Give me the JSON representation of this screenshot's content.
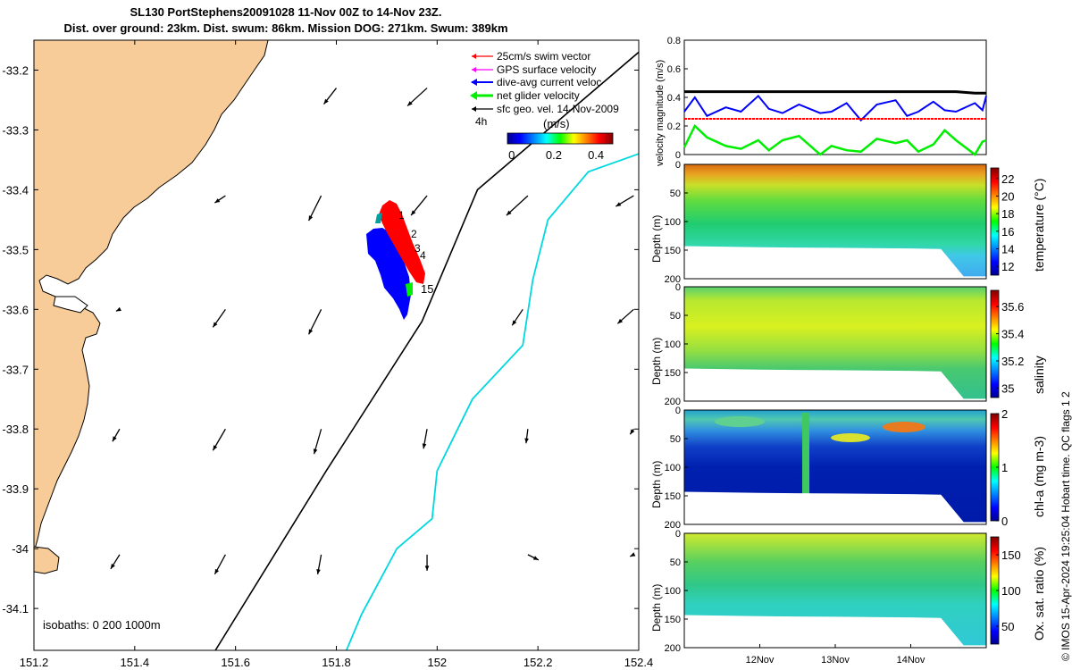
{
  "title": {
    "line1": "SL130 PortStephens20091028 11-Nov 00Z to 14-Nov 23Z.",
    "line2": "Dist. over ground: 23km. Dist. swum: 86km. Mission DOG: 271km. Swum: 389km"
  },
  "credit": "© IMOS 15-Apr-2024 19:25:04 Hobart time. QC flags 1  2",
  "colors": {
    "land": "#f8cc98",
    "glider_track": "#ff0000",
    "dive_avg": "#0000ff",
    "net_glider": "#00ee00",
    "isobath": "#00d8e0",
    "geo_vector": "#000000"
  },
  "chart_data": [
    {
      "type": "map",
      "name": "glider track map",
      "x_ticks": [
        151.2,
        151.4,
        151.6,
        151.8,
        152,
        152.2,
        152.4
      ],
      "x_tick_labels": [
        "151.2",
        "151.4",
        "151.6",
        "151.8",
        "152",
        "152.2",
        "152.4"
      ],
      "y_ticks": [
        -33.2,
        -33.3,
        -33.4,
        -33.5,
        -33.6,
        -33.7,
        -33.8,
        -33.9,
        -34,
        -34.1
      ],
      "y_tick_labels": [
        "-33.2",
        "-33.3",
        "-33.4",
        "-33.5",
        "-33.6",
        "-33.7",
        "-33.8",
        "-33.9",
        "-34",
        "-34.1"
      ],
      "xlim": [
        151.2,
        152.4
      ],
      "ylim": [
        -34.17,
        -33.15
      ],
      "legend": [
        {
          "label": "25cm/s swim vector",
          "color": "#ff0000"
        },
        {
          "label": "GPS surface velocity",
          "color": "#ff00ff"
        },
        {
          "label": "dive-avg current veloc",
          "color": "#0000ff"
        },
        {
          "label": "net glider velocity",
          "color": "#00ee00"
        },
        {
          "label": "sfc geo. vel. 14-Nov-2009",
          "color": "#000000"
        }
      ],
      "legend_extra": "4h",
      "colorbar": {
        "unit": "(m/s)",
        "ticks": [
          0,
          0.2,
          0.4
        ],
        "tick_labels": [
          "0",
          "0.2",
          "0.4"
        ],
        "range": [
          -0.02,
          0.48
        ]
      },
      "track_labels": [
        "1",
        "2",
        "3",
        "4",
        "15"
      ],
      "isobath_label": "isobaths: 0   200  1000m",
      "isobath_1000m": [
        [
          152.4,
          -33.34
        ],
        [
          152.3,
          -33.37
        ],
        [
          152.22,
          -33.45
        ],
        [
          152.19,
          -33.55
        ],
        [
          152.17,
          -33.66
        ],
        [
          152.07,
          -33.75
        ],
        [
          152.0,
          -33.87
        ],
        [
          151.99,
          -33.95
        ],
        [
          151.92,
          -34.0
        ],
        [
          151.85,
          -34.11
        ],
        [
          151.82,
          -34.17
        ]
      ],
      "glider_transect": [
        [
          152.4,
          -33.17
        ],
        [
          152.08,
          -33.4
        ],
        [
          151.97,
          -33.62
        ],
        [
          151.78,
          -33.87
        ],
        [
          151.56,
          -34.17
        ]
      ],
      "geo_vectors": [
        {
          "x": 151.8,
          "y": -33.23,
          "u": -0.35,
          "v": -0.45
        },
        {
          "x": 151.98,
          "y": -33.23,
          "u": -0.55,
          "v": -0.5
        },
        {
          "x": 151.58,
          "y": -33.41,
          "u": -0.3,
          "v": -0.2
        },
        {
          "x": 151.77,
          "y": -33.41,
          "u": -0.35,
          "v": -0.7
        },
        {
          "x": 151.98,
          "y": -33.41,
          "u": -0.45,
          "v": -0.55
        },
        {
          "x": 152.18,
          "y": -33.41,
          "u": -0.6,
          "v": -0.55
        },
        {
          "x": 152.39,
          "y": -33.41,
          "u": -0.5,
          "v": -0.3
        },
        {
          "x": 151.37,
          "y": -33.6,
          "u": -0.1,
          "v": -0.05
        },
        {
          "x": 151.58,
          "y": -33.6,
          "u": -0.35,
          "v": -0.5
        },
        {
          "x": 151.77,
          "y": -33.6,
          "u": -0.35,
          "v": -0.7
        },
        {
          "x": 152.17,
          "y": -33.6,
          "u": -0.3,
          "v": -0.45
        },
        {
          "x": 152.39,
          "y": -33.6,
          "u": -0.45,
          "v": -0.4
        },
        {
          "x": 151.37,
          "y": -33.8,
          "u": -0.2,
          "v": -0.35
        },
        {
          "x": 151.58,
          "y": -33.8,
          "u": -0.35,
          "v": -0.6
        },
        {
          "x": 151.77,
          "y": -33.8,
          "u": -0.2,
          "v": -0.7
        },
        {
          "x": 151.98,
          "y": -33.8,
          "u": -0.1,
          "v": -0.55
        },
        {
          "x": 152.18,
          "y": -33.8,
          "u": -0.05,
          "v": -0.4
        },
        {
          "x": 152.39,
          "y": -33.8,
          "u": -0.1,
          "v": -0.15
        },
        {
          "x": 151.37,
          "y": -34.01,
          "u": -0.25,
          "v": -0.4
        },
        {
          "x": 151.58,
          "y": -34.01,
          "u": -0.3,
          "v": -0.55
        },
        {
          "x": 151.77,
          "y": -34.01,
          "u": -0.1,
          "v": -0.55
        },
        {
          "x": 151.98,
          "y": -34.01,
          "u": 0.0,
          "v": -0.45
        },
        {
          "x": 152.18,
          "y": -34.01,
          "u": 0.3,
          "v": -0.15
        },
        {
          "x": 152.39,
          "y": -34.01,
          "u": -0.1,
          "v": -0.05
        }
      ]
    },
    {
      "type": "line",
      "name": "velocity magnitude",
      "ylabel": "velocity magnitude (m/s)",
      "ylim": [
        0,
        0.8
      ],
      "y_ticks": [
        0,
        0.2,
        0.4,
        0.6,
        0.8
      ],
      "y_tick_labels": [
        "0",
        "0.2",
        "0.4",
        "0.6",
        "0.8"
      ],
      "xlim": [
        0,
        4
      ],
      "x": [
        0,
        0.14,
        0.3,
        0.55,
        0.75,
        0.98,
        1.12,
        1.3,
        1.52,
        1.8,
        1.95,
        2.15,
        2.34,
        2.55,
        2.8,
        2.95,
        3.1,
        3.3,
        3.45,
        3.6,
        3.85,
        3.95,
        4
      ],
      "series": [
        {
          "color": "#000000",
          "values": [
            0.44,
            0.44,
            0.44,
            0.44,
            0.44,
            0.44,
            0.44,
            0.44,
            0.44,
            0.44,
            0.44,
            0.44,
            0.44,
            0.44,
            0.44,
            0.44,
            0.44,
            0.44,
            0.44,
            0.44,
            0.43,
            0.43,
            0.43
          ]
        },
        {
          "color": "#0000ff",
          "values": [
            0.3,
            0.4,
            0.27,
            0.33,
            0.3,
            0.41,
            0.32,
            0.29,
            0.35,
            0.29,
            0.3,
            0.36,
            0.24,
            0.35,
            0.38,
            0.27,
            0.3,
            0.37,
            0.31,
            0.3,
            0.36,
            0.31,
            0.41
          ]
        },
        {
          "color": "#ff0000",
          "values": [
            0.25,
            0.25,
            0.25,
            0.25,
            0.25,
            0.25,
            0.25,
            0.25,
            0.25,
            0.25,
            0.25,
            0.25,
            0.25,
            0.25,
            0.25,
            0.25,
            0.25,
            0.25,
            0.25,
            0.25,
            0.25,
            0.25,
            0.25
          ]
        },
        {
          "color": "#00ee00",
          "values": [
            0.05,
            0.2,
            0.12,
            0.06,
            0.04,
            0.1,
            0.03,
            0.1,
            0.13,
            0.0,
            0.06,
            0.03,
            0.02,
            0.11,
            0.08,
            0.1,
            0.02,
            0.07,
            0.17,
            0.1,
            0.0,
            0.09,
            0.1
          ]
        }
      ]
    },
    {
      "type": "heatmap",
      "name": "temperature section",
      "ylabel": "Depth (m)",
      "y_ticks": [
        0,
        50,
        100,
        150,
        200
      ],
      "y_tick_labels": [
        "0",
        "50",
        "100",
        "150",
        "200"
      ],
      "ylim": [
        200,
        0
      ],
      "colorbar": {
        "label": "temperature (°C)",
        "ticks": [
          12,
          14,
          16,
          18,
          20,
          22
        ],
        "tick_labels": [
          "12",
          "14",
          "16",
          "18",
          "20",
          "22"
        ],
        "range": [
          11,
          23.2
        ],
        "palette": "jet"
      },
      "bottom_depth": [
        [
          0,
          143
        ],
        [
          1,
          145
        ],
        [
          2,
          146
        ],
        [
          3,
          147
        ],
        [
          3.4,
          148
        ],
        [
          3.7,
          196
        ],
        [
          4,
          196
        ]
      ]
    },
    {
      "type": "heatmap",
      "name": "salinity section",
      "ylabel": "Depth (m)",
      "y_ticks": [
        0,
        50,
        100,
        150,
        200
      ],
      "y_tick_labels": [
        "0",
        "50",
        "100",
        "150",
        "200"
      ],
      "ylim": [
        200,
        0
      ],
      "colorbar": {
        "label": "salinity",
        "ticks": [
          35,
          35.2,
          35.4,
          35.6
        ],
        "tick_labels": [
          "35",
          "35.2",
          "35.4",
          "35.6"
        ],
        "range": [
          34.93,
          35.72
        ],
        "palette": "jet"
      },
      "bottom_depth": [
        [
          0,
          143
        ],
        [
          1,
          145
        ],
        [
          2,
          146
        ],
        [
          3,
          147
        ],
        [
          3.4,
          148
        ],
        [
          3.7,
          196
        ],
        [
          4,
          196
        ]
      ]
    },
    {
      "type": "heatmap",
      "name": "chlorophyll section",
      "ylabel": "Depth (m)",
      "y_ticks": [
        0,
        50,
        100,
        150,
        200
      ],
      "y_tick_labels": [
        "0",
        "50",
        "100",
        "150",
        "200"
      ],
      "ylim": [
        200,
        0
      ],
      "colorbar": {
        "label": "chl-a (mg m-3)",
        "ticks": [
          0,
          1,
          2
        ],
        "tick_labels": [
          "0",
          "1",
          "2"
        ],
        "range": [
          0,
          2
        ],
        "palette": "jet"
      },
      "bottom_depth": [
        [
          0,
          143
        ],
        [
          1,
          145
        ],
        [
          2,
          146
        ],
        [
          3,
          147
        ],
        [
          3.4,
          148
        ],
        [
          3.7,
          196
        ],
        [
          4,
          196
        ]
      ]
    },
    {
      "type": "heatmap",
      "name": "oxygen saturation section",
      "ylabel": "Depth (m)",
      "y_ticks": [
        0,
        50,
        100,
        150,
        200
      ],
      "y_tick_labels": [
        "0",
        "50",
        "100",
        "150",
        "200"
      ],
      "ylim": [
        200,
        0
      ],
      "x_ticks": [
        1,
        2,
        3
      ],
      "x_tick_labels": [
        "12Nov",
        "13Nov",
        "14Nov"
      ],
      "colorbar": {
        "label": "Ox. sat. ratio (%)",
        "ticks": [
          50,
          100,
          150
        ],
        "tick_labels": [
          "50",
          "100",
          "150"
        ],
        "range": [
          25,
          175
        ],
        "palette": "jet"
      },
      "bottom_depth": [
        [
          0,
          143
        ],
        [
          1,
          145
        ],
        [
          2,
          146
        ],
        [
          3,
          147
        ],
        [
          3.4,
          148
        ],
        [
          3.7,
          196
        ],
        [
          4,
          196
        ]
      ]
    }
  ]
}
